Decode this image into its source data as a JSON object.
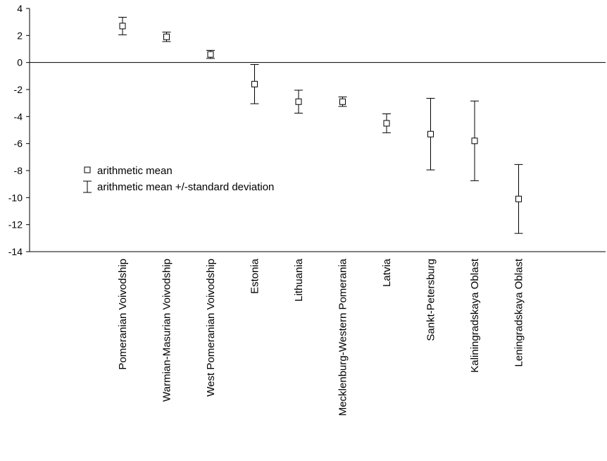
{
  "chart_data": {
    "type": "scatter",
    "title": "",
    "xlabel": "",
    "ylabel": "",
    "ylim": [
      -14,
      4
    ],
    "yticks": [
      4,
      2,
      0,
      -2,
      -4,
      -6,
      -8,
      -10,
      -12,
      -14
    ],
    "grid": false,
    "reference_line_y": 0,
    "legend_position": "middle-left",
    "legend": {
      "mean_label": "arithmetic mean",
      "sd_label": "arithmetic mean +/-standard deviation"
    },
    "categories": [
      "Pomeranian Voivodship",
      "Warmian-Masurian Voivodship",
      "West Pomeranian Voivodship",
      "Estonia",
      "Lithuania",
      "Mecklenburg-Western Pomerania",
      "Latvia",
      "Sankt-Petersburg",
      "Kaliningradskaya Oblast",
      "Leningradskaya Oblast"
    ],
    "series": [
      {
        "mean": [
          2.7,
          1.9,
          0.6,
          -1.6,
          -2.9,
          -2.9,
          -4.5,
          -5.3,
          -5.8,
          -10.1
        ],
        "sd": [
          0.65,
          0.35,
          0.3,
          1.45,
          0.85,
          0.35,
          0.7,
          2.65,
          2.95,
          2.55
        ]
      }
    ],
    "colors": {
      "marker_fill": "#ffffff",
      "marker_stroke": "#000000",
      "axis": "#000000"
    }
  }
}
